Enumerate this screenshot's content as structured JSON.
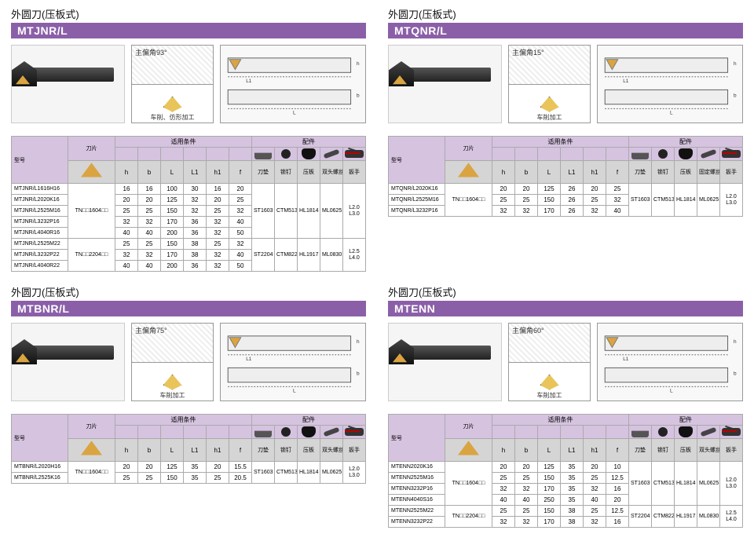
{
  "category_label": "外圆刀(压板式)",
  "panels": [
    {
      "model": "MTJNR/L",
      "angle_label": "主偏角93°",
      "diagram_caption": "车削、仿形加工",
      "insert_header": "刀片",
      "cond_header": "适用条件",
      "acc_header": "配件",
      "model_header": "型号",
      "dims": [
        "h",
        "b",
        "L",
        "L1",
        "h1",
        "f"
      ],
      "acc_labels": [
        "刀垫",
        "锁钉",
        "压板",
        "双头螺丝",
        "扳手"
      ],
      "groups": [
        {
          "insert": "TN□□1604□□",
          "rows": [
            {
              "m": "MTJNR/L1616H16",
              "d": [
                16,
                16,
                100,
                30,
                16,
                20
              ]
            },
            {
              "m": "MTJNR/L2020K16",
              "d": [
                20,
                20,
                125,
                32,
                20,
                25
              ]
            },
            {
              "m": "MTJNR/L2525M16",
              "d": [
                25,
                25,
                150,
                32,
                25,
                32
              ]
            },
            {
              "m": "MTJNR/L3232P16",
              "d": [
                32,
                32,
                170,
                36,
                32,
                40
              ]
            },
            {
              "m": "MTJNR/L4040R16",
              "d": [
                40,
                40,
                200,
                36,
                32,
                50
              ]
            }
          ],
          "acc": [
            "ST1603",
            "CTM513",
            "HL1814",
            "ML0625"
          ],
          "wrench": "L2.0\nL3.0"
        },
        {
          "insert": "TN□□2204□□",
          "rows": [
            {
              "m": "MTJNR/L2525M22",
              "d": [
                25,
                25,
                150,
                38,
                25,
                32
              ]
            },
            {
              "m": "MTJNR/L3232P22",
              "d": [
                32,
                32,
                170,
                38,
                32,
                40
              ]
            },
            {
              "m": "MTJNR/L4040R22",
              "d": [
                40,
                40,
                200,
                36,
                32,
                50
              ]
            }
          ],
          "acc": [
            "ST2204",
            "CTM822",
            "HL1917",
            "ML0830"
          ],
          "wrench": "L2.5\nL4.0"
        }
      ]
    },
    {
      "model": "MTQNR/L",
      "angle_label": "主偏角15°",
      "diagram_caption": "车削加工",
      "insert_header": "刀片",
      "cond_header": "适用条件",
      "acc_header": "配件",
      "model_header": "型号",
      "dims": [
        "h",
        "b",
        "L",
        "L1",
        "h1",
        "f"
      ],
      "acc_labels": [
        "刀垫",
        "锁钉",
        "压板",
        "固定螺丝",
        "扳手"
      ],
      "groups": [
        {
          "insert": "TN□□1604□□",
          "rows": [
            {
              "m": "MTQNR/L2020K16",
              "d": [
                20,
                20,
                125,
                26,
                20,
                25
              ]
            },
            {
              "m": "MTQNR/L2525M16",
              "d": [
                25,
                25,
                150,
                26,
                25,
                32
              ]
            },
            {
              "m": "MTQNR/L3232P16",
              "d": [
                32,
                32,
                170,
                26,
                32,
                40
              ]
            }
          ],
          "acc": [
            "ST1603",
            "CTM513",
            "HL1814",
            "ML0625"
          ],
          "wrench": "L2.0\nL3.0"
        }
      ]
    },
    {
      "model": "MTBNR/L",
      "angle_label": "主偏角75°",
      "diagram_caption": "车削加工",
      "insert_header": "刀片",
      "cond_header": "适用条件",
      "acc_header": "配件",
      "model_header": "型号",
      "dims": [
        "h",
        "b",
        "L",
        "L1",
        "h1",
        "f"
      ],
      "acc_labels": [
        "刀垫",
        "锁钉",
        "压板",
        "双头螺丝",
        "扳手"
      ],
      "groups": [
        {
          "insert": "TN□□1604□□",
          "rows": [
            {
              "m": "MTBNR/L2020H16",
              "d": [
                20,
                20,
                125,
                35,
                20,
                15.5
              ]
            },
            {
              "m": "MTBNR/L2525K16",
              "d": [
                25,
                25,
                150,
                35,
                25,
                20.5
              ]
            }
          ],
          "acc": [
            "ST1603",
            "CTM513",
            "HL1814",
            "ML0625"
          ],
          "wrench": "L2.0\nL3.0"
        }
      ]
    },
    {
      "model": "MTENN",
      "angle_label": "主偏角60°",
      "diagram_caption": "车削加工",
      "insert_header": "刀片",
      "cond_header": "适用条件",
      "acc_header": "配件",
      "model_header": "型号",
      "dims": [
        "h",
        "b",
        "L",
        "L1",
        "h1",
        "f"
      ],
      "acc_labels": [
        "刀垫",
        "锁钉",
        "压板",
        "双头螺丝",
        "扳手"
      ],
      "groups": [
        {
          "insert": "TN□□1604□□",
          "rows": [
            {
              "m": "MTENN2020K16",
              "d": [
                20,
                20,
                125,
                35,
                20,
                10
              ]
            },
            {
              "m": "MTENN2525M16",
              "d": [
                25,
                25,
                150,
                35,
                25,
                12.5
              ]
            },
            {
              "m": "MTENN3232P16",
              "d": [
                32,
                32,
                170,
                35,
                32,
                16
              ]
            },
            {
              "m": "MTENN4040S16",
              "d": [
                40,
                40,
                250,
                35,
                40,
                20
              ]
            }
          ],
          "acc": [
            "ST1603",
            "CTM513",
            "HL1814",
            "ML0625"
          ],
          "wrench": "L2.0\nL3.0"
        },
        {
          "insert": "TN□□2204□□",
          "rows": [
            {
              "m": "MTENN2525M22",
              "d": [
                25,
                25,
                150,
                38,
                25,
                12.5
              ]
            },
            {
              "m": "MTENN3232P22",
              "d": [
                32,
                32,
                170,
                38,
                32,
                16
              ]
            }
          ],
          "acc": [
            "ST2204",
            "CTM822",
            "HL1917",
            "ML0830"
          ],
          "wrench": "L2.5\nL4.0"
        }
      ]
    }
  ]
}
